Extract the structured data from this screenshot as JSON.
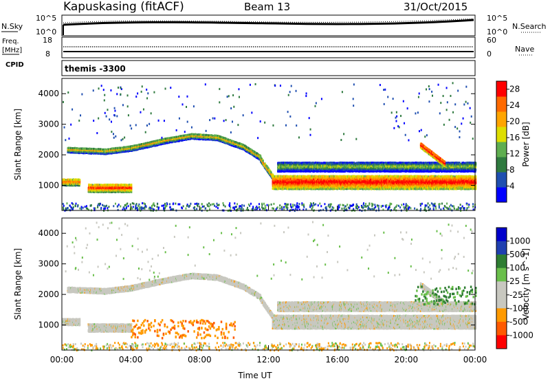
{
  "header": {
    "station": "Kapuskasing (fitACF)",
    "beam": "Beam 13",
    "date": "31/Oct/2015"
  },
  "panels": {
    "nsky_label": "N.Sky",
    "nsearch_label": "N.Search",
    "freq_label": "Freq.",
    "freq_unit": "[MHz]",
    "nave_label": "Nave",
    "cpid_label": "CPID",
    "cpid_value": "themis -3300",
    "noise_left_ticks": [
      "10^5",
      "10^0"
    ],
    "noise_right_ticks": [
      "10^5",
      "10^0"
    ],
    "freq_left_ticks": [
      "18",
      "8"
    ],
    "freq_right_ticks": [
      "60",
      "0"
    ]
  },
  "colors": {
    "grey_scatter": "#c8c8c0",
    "power_scale": [
      "#0000ff",
      "#1f4fb0",
      "#2f7a3f",
      "#5fae50",
      "#dede00",
      "#ffa500",
      "#ff6a00",
      "#ff0000"
    ],
    "velocity_scale": [
      "#0000cc",
      "#2040b0",
      "#2e7d32",
      "#6abf4b",
      "#c8c8c0",
      "#c8c8c0",
      "#ff9a00",
      "#ff5a00",
      "#ff0000"
    ]
  },
  "chart_data": [
    {
      "type": "heatmap",
      "title": "Power",
      "xlabel": "",
      "ylabel": "Slant Range [km]",
      "xlim": [
        0,
        24
      ],
      "ylim": [
        180,
        4500
      ],
      "yticks": [
        "1000",
        "2000",
        "3000",
        "4000"
      ],
      "colorbar": {
        "label": "Power [dB]",
        "ticks": [
          "4",
          "8",
          "12",
          "16",
          "20",
          "24",
          "28"
        ],
        "range": [
          0,
          30
        ]
      },
      "features": [
        {
          "name": "lower band",
          "x_start": 0.0,
          "x_end": 1.0,
          "range_km": 1150,
          "width_km": 220,
          "db": 20
        },
        {
          "name": "mid-range arc",
          "x_start": 0.3,
          "x_end": 11.5,
          "range_km_profile": [
            [
              0.3,
              2200
            ],
            [
              2.5,
              2150
            ],
            [
              4.0,
              2250
            ],
            [
              6.0,
              2500
            ],
            [
              7.5,
              2650
            ],
            [
              9.0,
              2600
            ],
            [
              10.5,
              2300
            ],
            [
              11.5,
              1950
            ]
          ],
          "db": 14
        },
        {
          "name": "descending edge",
          "x_start": 11.5,
          "x_end": 12.3,
          "range_km_profile": [
            [
              11.5,
              1900
            ],
            [
              12.3,
              1250
            ]
          ],
          "db": 16
        },
        {
          "name": "main band after 12 UT",
          "x_start": 12.2,
          "x_end": 24.0,
          "range_km": 1150,
          "width_km": 450,
          "db": 24
        },
        {
          "name": "upper band after 12 UT",
          "x_start": 12.5,
          "x_end": 24.0,
          "range_km": 1650,
          "width_km": 300,
          "db": 10
        },
        {
          "name": "evening feature",
          "x_start": 20.8,
          "x_end": 22.2,
          "range_km_profile": [
            [
              20.8,
              2350
            ],
            [
              22.2,
              1750
            ]
          ],
          "db": 26
        },
        {
          "name": "early patches",
          "x_start": 1.5,
          "x_end": 4.0,
          "range_km": 950,
          "width_km": 250,
          "db": 22
        }
      ]
    },
    {
      "type": "heatmap",
      "title": "Velocity",
      "xlabel": "Time UT",
      "ylabel": "Slant Range [km]",
      "xlim": [
        0,
        24
      ],
      "ylim": [
        180,
        4500
      ],
      "xticks": [
        "00:00",
        "04:00",
        "08:00",
        "12:00",
        "16:00",
        "20:00",
        "00:00"
      ],
      "yticks": [
        "1000",
        "2000",
        "3000",
        "4000"
      ],
      "colorbar": {
        "label": "Velocity [m s^-1]",
        "ticks": [
          "1000",
          "500",
          "100",
          "25",
          "-25",
          "-100",
          "-500",
          "-1000"
        ]
      },
      "features": [
        {
          "name": "ground scatter arc",
          "x_start": 0.3,
          "x_end": 11.5,
          "velocity_ms": 0
        },
        {
          "name": "ground scatter band",
          "x_start": 12.2,
          "x_end": 24.0,
          "range_km": 1150,
          "velocity_ms": 0
        },
        {
          "name": "negative velocity patches",
          "x_start": 4.0,
          "x_end": 10.0,
          "range_km": 900,
          "velocity_ms": -200
        },
        {
          "name": "evening ionospheric scatter",
          "x_start": 20.5,
          "x_end": 24.0,
          "range_km": 2000,
          "velocity_ms": 150
        }
      ]
    }
  ]
}
